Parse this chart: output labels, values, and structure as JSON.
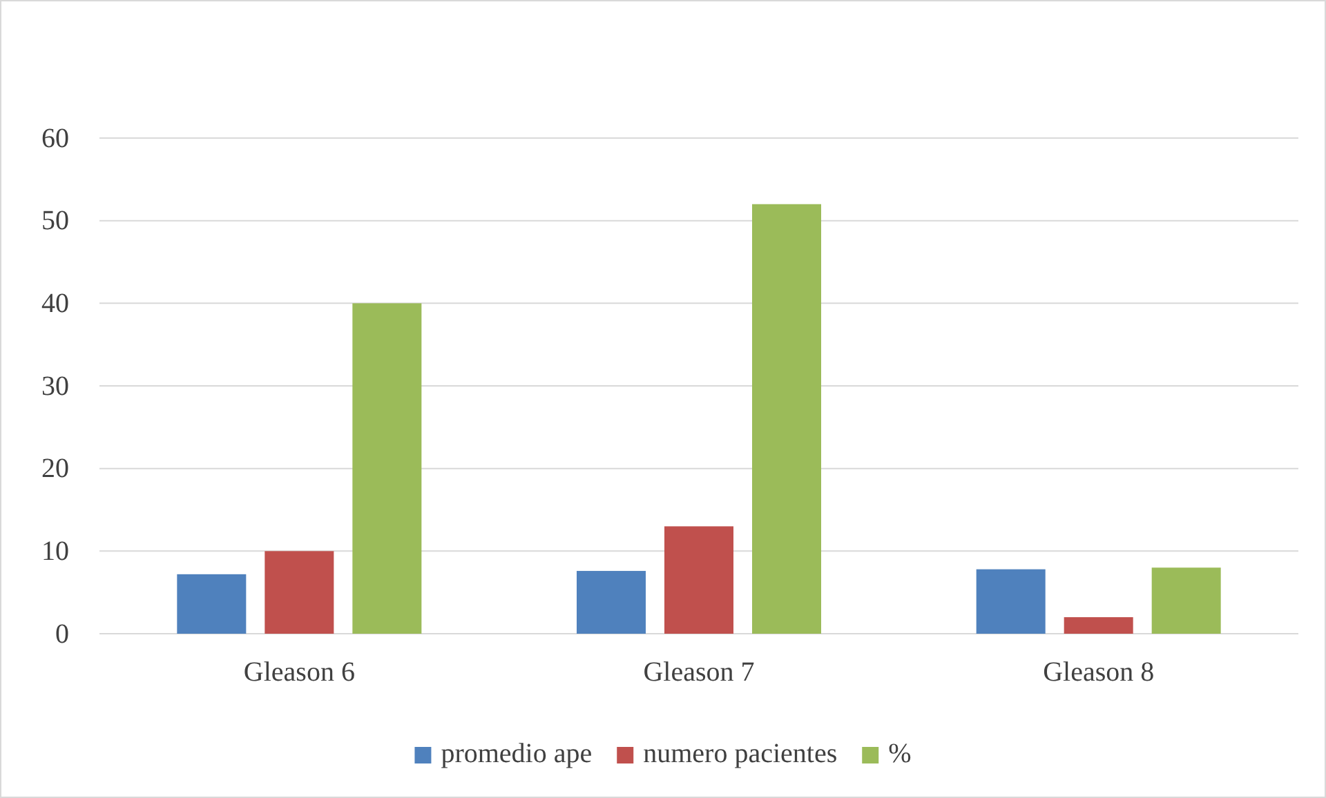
{
  "chart_data": {
    "type": "bar",
    "categories": [
      "Gleason 6",
      "Gleason 7",
      "Gleason 8"
    ],
    "series": [
      {
        "name": "promedio ape",
        "color": "#4f81bd",
        "values": [
          7.2,
          7.6,
          7.8
        ]
      },
      {
        "name": "numero pacientes",
        "color": "#c0504d",
        "values": [
          10,
          13,
          2
        ]
      },
      {
        "name": "%",
        "color": "#9bbb59",
        "values": [
          40,
          52,
          8
        ]
      }
    ],
    "ylim": [
      0,
      60
    ],
    "yticks": [
      0,
      10,
      20,
      30,
      40,
      50,
      60
    ],
    "grid": "y",
    "legend": "bottom"
  }
}
